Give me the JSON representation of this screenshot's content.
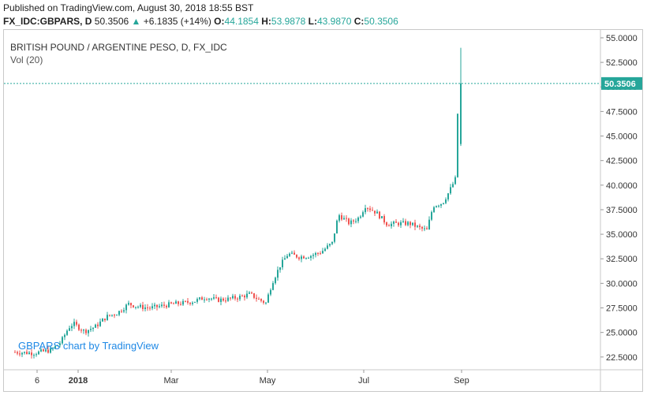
{
  "header": {
    "published": "Published on TradingView.com, August 30, 2018 18:55 BST",
    "symbol": "FX_IDC:GBPARS, D",
    "last": "50.3506",
    "change_arrow": "▲",
    "change": "+6.1835 (+14%)",
    "o_label": "O:",
    "o_value": "44.1854",
    "h_label": "H:",
    "h_value": "53.9878",
    "l_label": "L:",
    "l_value": "43.9870",
    "c_label": "C:",
    "c_value": "50.3506"
  },
  "chart_data": {
    "type": "candlestick",
    "title": "BRITISH POUND / ARGENTINE PESO, D, FX_IDC",
    "volume_label": "Vol (20)",
    "watermark": "GBPARS chart by TradingView",
    "ylim": [
      21.2,
      55.8
    ],
    "y_ticks": [
      "55.0000",
      "52.5000",
      "50.0000",
      "47.5000",
      "45.0000",
      "42.5000",
      "40.0000",
      "37.5000",
      "35.0000",
      "32.5000",
      "30.0000",
      "27.5000",
      "25.0000",
      "22.5000"
    ],
    "x_ticks": [
      "6",
      "2018",
      "Mar",
      "May",
      "Jul",
      "Sep"
    ],
    "last_price_label": "50.3506",
    "last_price": 50.3506,
    "up_color": "#26a69a",
    "down_color": "#ef5350",
    "series": [
      {
        "x": "2017-11-22",
        "close": 23.0
      },
      {
        "x": "2017-12-04",
        "close": 22.9
      },
      {
        "x": "2017-12-15",
        "close": 23.2
      },
      {
        "x": "2017-12-21",
        "close": 24.0
      },
      {
        "x": "2017-12-26",
        "close": 25.5
      },
      {
        "x": "2017-12-29",
        "close": 25.9
      },
      {
        "x": "2018-01-05",
        "close": 25.1
      },
      {
        "x": "2018-01-12",
        "close": 25.6
      },
      {
        "x": "2018-01-19",
        "close": 26.6
      },
      {
        "x": "2018-01-26",
        "close": 27.0
      },
      {
        "x": "2018-02-02",
        "close": 27.9
      },
      {
        "x": "2018-02-09",
        "close": 27.6
      },
      {
        "x": "2018-02-16",
        "close": 27.5
      },
      {
        "x": "2018-02-23",
        "close": 27.7
      },
      {
        "x": "2018-03-02",
        "close": 27.9
      },
      {
        "x": "2018-03-09",
        "close": 28.0
      },
      {
        "x": "2018-03-16",
        "close": 28.2
      },
      {
        "x": "2018-03-23",
        "close": 28.6
      },
      {
        "x": "2018-03-30",
        "close": 28.3
      },
      {
        "x": "2018-04-06",
        "close": 28.4
      },
      {
        "x": "2018-04-13",
        "close": 28.6
      },
      {
        "x": "2018-04-20",
        "close": 28.9
      },
      {
        "x": "2018-04-25",
        "close": 28.4
      },
      {
        "x": "2018-04-30",
        "close": 28.0
      },
      {
        "x": "2018-05-04",
        "close": 30.1
      },
      {
        "x": "2018-05-09",
        "close": 31.8
      },
      {
        "x": "2018-05-14",
        "close": 33.0
      },
      {
        "x": "2018-05-21",
        "close": 32.7
      },
      {
        "x": "2018-05-28",
        "close": 32.8
      },
      {
        "x": "2018-06-04",
        "close": 33.2
      },
      {
        "x": "2018-06-11",
        "close": 34.1
      },
      {
        "x": "2018-06-15",
        "close": 37.0
      },
      {
        "x": "2018-06-22",
        "close": 36.1
      },
      {
        "x": "2018-06-28",
        "close": 36.7
      },
      {
        "x": "2018-07-02",
        "close": 37.9
      },
      {
        "x": "2018-07-09",
        "close": 37.2
      },
      {
        "x": "2018-07-16",
        "close": 36.0
      },
      {
        "x": "2018-07-23",
        "close": 36.1
      },
      {
        "x": "2018-07-30",
        "close": 36.1
      },
      {
        "x": "2018-08-06",
        "close": 35.6
      },
      {
        "x": "2018-08-10",
        "close": 35.4
      },
      {
        "x": "2018-08-14",
        "close": 37.9
      },
      {
        "x": "2018-08-20",
        "close": 38.2
      },
      {
        "x": "2018-08-24",
        "close": 39.3
      },
      {
        "x": "2018-08-28",
        "close": 40.6
      },
      {
        "x": "2018-08-29",
        "close": 44.2
      },
      {
        "x": "2018-08-30",
        "close": 50.35
      }
    ]
  }
}
